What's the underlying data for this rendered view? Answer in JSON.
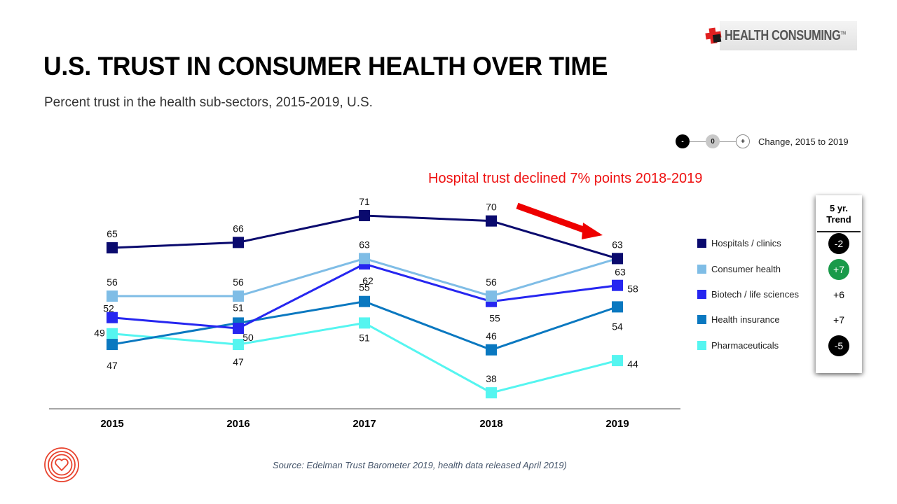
{
  "header": {
    "title": "U.S. TRUST IN CONSUMER HEALTH OVER TIME",
    "subtitle": "Percent trust in the health sub-sectors, 2015-2019, U.S.",
    "brand_logo": {
      "text": "HEALTH CONSUMING",
      "trademark": "TM",
      "icon": "medical-cross-icon"
    }
  },
  "change_legend": {
    "negative": "-",
    "neutral": "0",
    "positive": "+",
    "label": "Change, 2015 to 2019"
  },
  "annotation": {
    "text": "Hospital trust declined 7% points 2018-2019",
    "color": "#ee1111",
    "arrow": "red-arrow-icon"
  },
  "trend_panel": {
    "header_line1": "5 yr.",
    "header_line2": "Trend",
    "values": [
      {
        "value": "-2",
        "style": "negative",
        "bg": "#000000",
        "fg": "#ffffff"
      },
      {
        "value": "+7",
        "style": "positive-highlight",
        "bg": "#1a9a4a",
        "fg": "#ffffff"
      },
      {
        "value": "+6",
        "style": "plain",
        "bg": "",
        "fg": "#000000"
      },
      {
        "value": "+7",
        "style": "plain",
        "bg": "",
        "fg": "#000000"
      },
      {
        "value": "-5",
        "style": "negative",
        "bg": "#000000",
        "fg": "#ffffff"
      }
    ]
  },
  "footer": {
    "source": "Source: Edelman Trust Barometer 2019, health data released April 2019)",
    "logo": "concentric-heart-icon"
  },
  "chart_data": {
    "type": "line",
    "title": "U.S. TRUST IN CONSUMER HEALTH OVER TIME",
    "subtitle": "Percent trust in the health sub-sectors, 2015-2019, U.S.",
    "xlabel": "",
    "ylabel": "Percent trust",
    "x": [
      "2015",
      "2016",
      "2017",
      "2018",
      "2019"
    ],
    "grid": false,
    "legend_position": "right",
    "series": [
      {
        "name": "Hospitals / clinics",
        "color": "#0a0a6e",
        "values": [
          65,
          66,
          71,
          70,
          63
        ],
        "trend": "-2"
      },
      {
        "name": "Consumer health",
        "color": "#7fbde6",
        "values": [
          56,
          56,
          63,
          56,
          63
        ],
        "trend": "+7"
      },
      {
        "name": "Biotech / life sciences",
        "color": "#2626f0",
        "values": [
          52,
          50,
          62,
          55,
          58
        ],
        "trend": "+6"
      },
      {
        "name": "Health insurance",
        "color": "#0a78c0",
        "values": [
          47,
          51,
          55,
          46,
          54
        ],
        "trend": "+7"
      },
      {
        "name": "Pharmaceuticals",
        "color": "#55f5f0",
        "values": [
          49,
          47,
          51,
          38,
          44
        ],
        "trend": "-5"
      }
    ]
  }
}
